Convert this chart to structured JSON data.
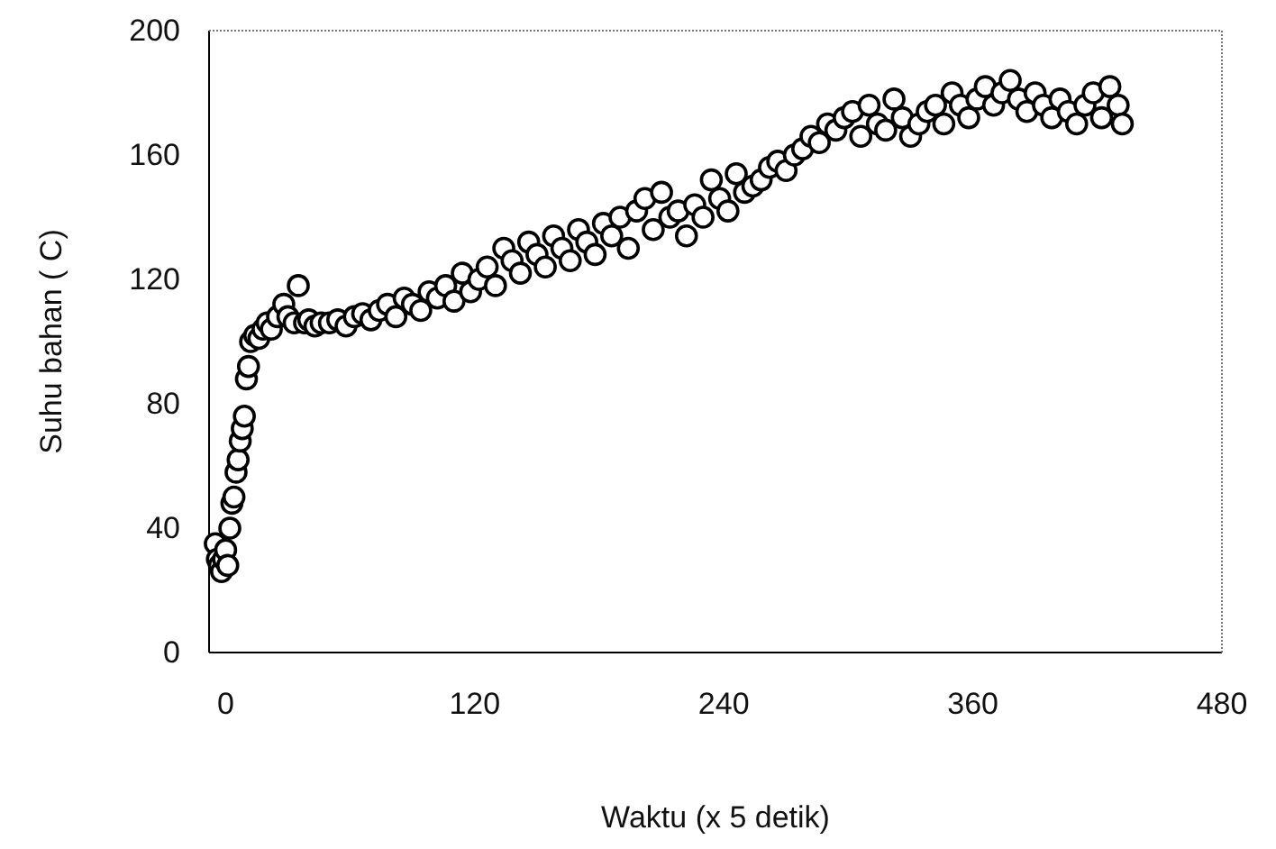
{
  "chart_data": {
    "type": "scatter",
    "xlabel": "Waktu (x 5 detik)",
    "ylabel": "Suhu bahan ( C)",
    "marker": "circle",
    "grid": false,
    "xlim": [
      -8,
      480
    ],
    "ylim": [
      0,
      200
    ],
    "xticks": [
      0,
      120,
      240,
      360,
      480
    ],
    "yticks": [
      0,
      40,
      80,
      120,
      160,
      200
    ],
    "series": [
      {
        "color": "#000000",
        "x": [
          -5,
          -4,
          -3,
          -2,
          -1,
          0,
          1,
          2,
          3,
          4,
          5,
          6,
          7,
          8,
          9,
          10,
          11,
          12,
          14,
          16,
          18,
          20,
          22,
          25,
          28,
          30,
          33,
          35,
          38,
          40,
          43,
          46,
          50,
          54,
          58,
          62,
          66,
          70,
          74,
          78,
          82,
          86,
          90,
          94,
          98,
          102,
          106,
          110,
          114,
          118,
          122,
          126,
          130,
          134,
          138,
          142,
          146,
          150,
          154,
          158,
          162,
          166,
          170,
          174,
          178,
          182,
          186,
          190,
          194,
          198,
          202,
          206,
          210,
          214,
          218,
          222,
          226,
          230,
          234,
          238,
          242,
          246,
          250,
          254,
          258,
          262,
          266,
          270,
          274,
          278,
          282,
          286,
          290,
          294,
          298,
          302,
          306,
          310,
          314,
          318,
          322,
          326,
          330,
          334,
          338,
          342,
          346,
          350,
          354,
          358,
          362,
          366,
          370,
          374,
          378,
          382,
          386,
          390,
          394,
          398,
          402,
          406,
          410,
          414,
          418,
          422,
          426,
          430,
          432
        ],
        "values": [
          35,
          30,
          28,
          26,
          30,
          33,
          28,
          40,
          48,
          50,
          58,
          62,
          68,
          72,
          76,
          88,
          92,
          100,
          102,
          101,
          104,
          106,
          104,
          108,
          112,
          108,
          106,
          118,
          106,
          107,
          105,
          106,
          106,
          107,
          105,
          108,
          109,
          107,
          110,
          112,
          108,
          114,
          112,
          110,
          116,
          114,
          118,
          113,
          122,
          116,
          120,
          124,
          118,
          130,
          126,
          122,
          132,
          128,
          124,
          134,
          130,
          126,
          136,
          132,
          128,
          138,
          134,
          140,
          130,
          142,
          146,
          136,
          148,
          140,
          142,
          134,
          144,
          140,
          152,
          146,
          142,
          154,
          148,
          150,
          152,
          156,
          158,
          155,
          160,
          162,
          166,
          164,
          170,
          168,
          172,
          174,
          166,
          176,
          170,
          168,
          178,
          172,
          166,
          170,
          174,
          176,
          170,
          180,
          176,
          172,
          178,
          182,
          176,
          180,
          184,
          178,
          174,
          180,
          176,
          172,
          178,
          174,
          170,
          176,
          180,
          172,
          182,
          176,
          170
        ]
      }
    ]
  }
}
